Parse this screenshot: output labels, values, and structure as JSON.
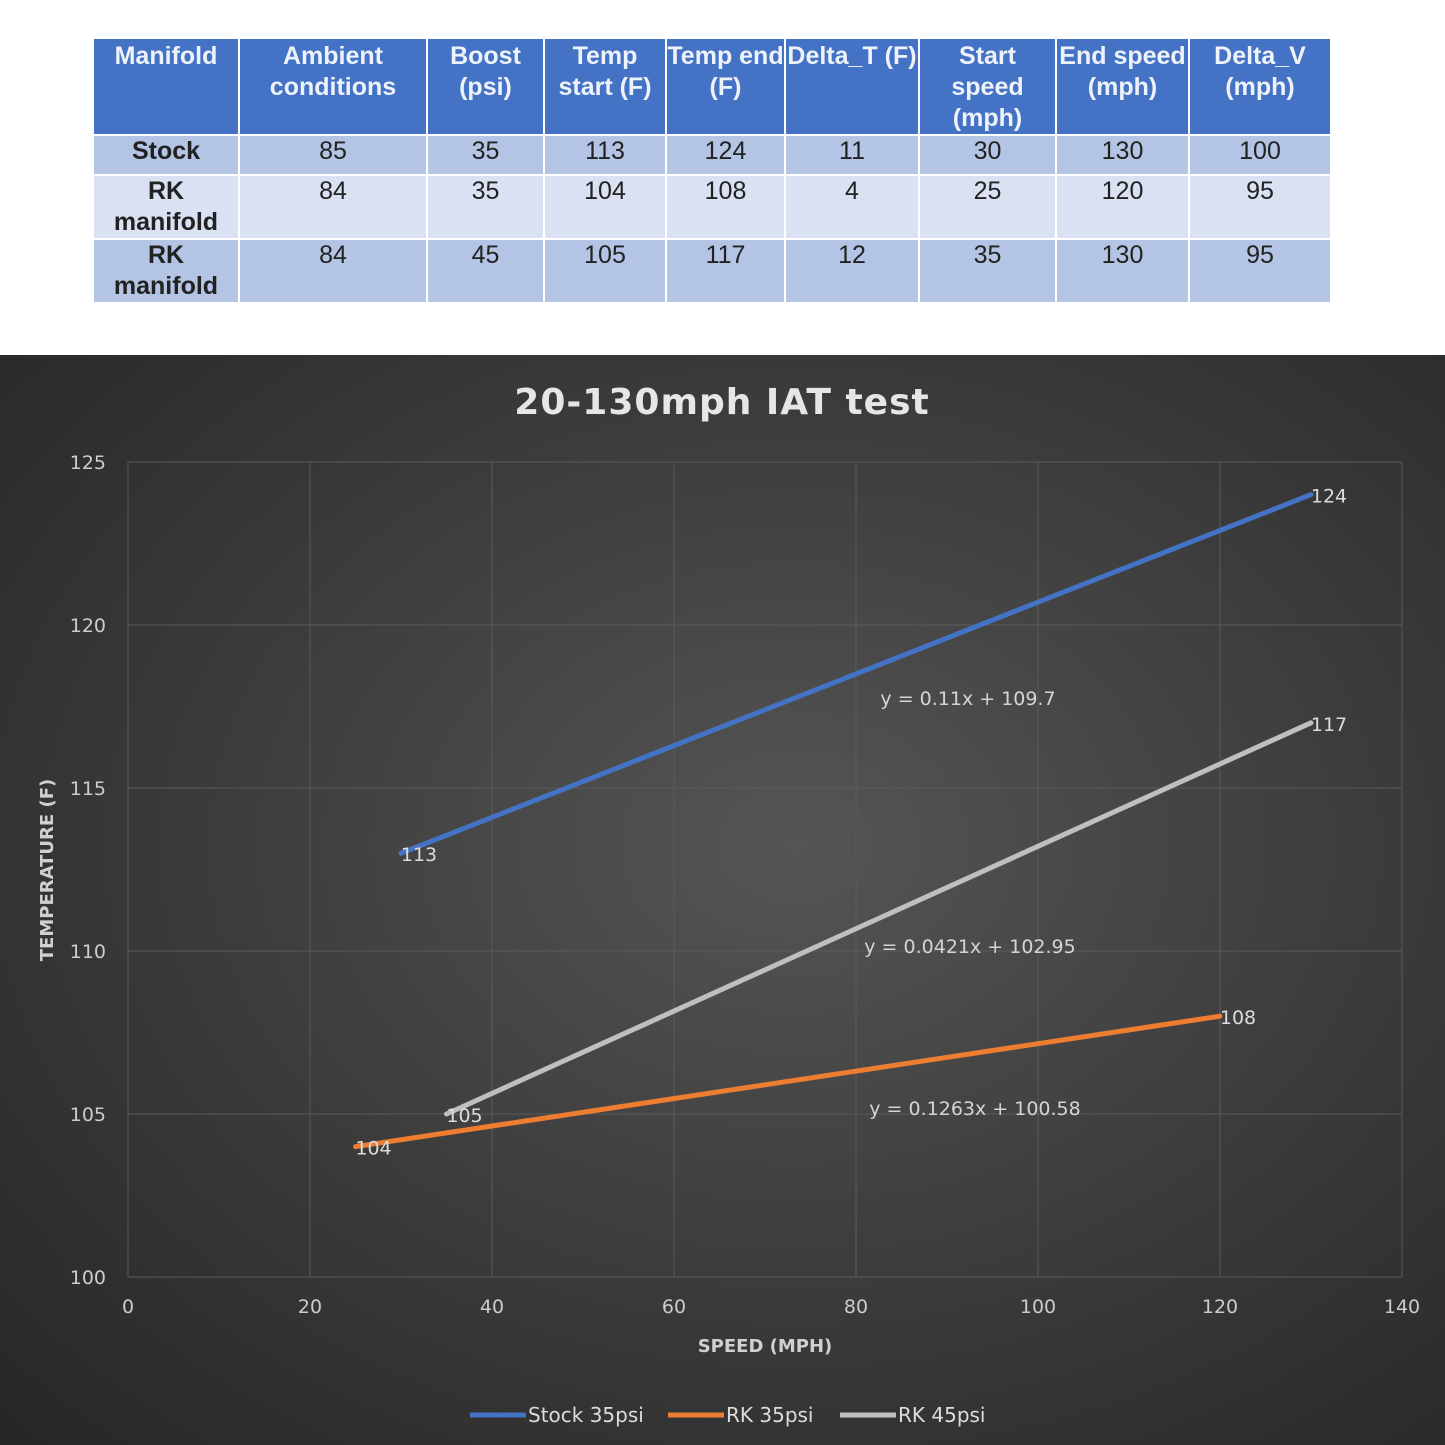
{
  "table": {
    "headers": [
      "Manifold",
      "Ambient conditions",
      "Boost (psi)",
      "Temp start (F)",
      "Temp end (F)",
      "Delta_T (F)",
      "Start speed (mph)",
      "End speed (mph)",
      "Delta_V (mph)"
    ],
    "rows": [
      [
        "Stock",
        "85",
        "35",
        "113",
        "124",
        "11",
        "30",
        "130",
        "100"
      ],
      [
        "RK manifold",
        "84",
        "35",
        "104",
        "108",
        "4",
        "25",
        "120",
        "95"
      ],
      [
        "RK manifold",
        "84",
        "45",
        "105",
        "117",
        "12",
        "35",
        "130",
        "95"
      ]
    ]
  },
  "chart_data": {
    "type": "line",
    "title": "20-130mph IAT test",
    "xlabel": "SPEED (MPH)",
    "ylabel": "TEMPERATURE (F)",
    "xlim": [
      0,
      140
    ],
    "ylim": [
      100,
      125
    ],
    "xticks": [
      "0",
      "20",
      "40",
      "60",
      "80",
      "100",
      "120",
      "140"
    ],
    "yticks": [
      "100",
      "105",
      "110",
      "115",
      "120",
      "125"
    ],
    "grid": true,
    "legend": "bottom",
    "series": [
      {
        "name": "Stock 35psi",
        "color": "#4472c4",
        "points": [
          [
            30,
            113
          ],
          [
            130,
            124
          ]
        ],
        "labels": [
          "113",
          "124"
        ],
        "trendline": "y = 0.11x + 109.7"
      },
      {
        "name": "RK 35psi",
        "color": "#ed7d31",
        "points": [
          [
            25,
            104
          ],
          [
            120,
            108
          ]
        ],
        "labels": [
          "104",
          "108"
        ],
        "trendline": "y = 0.0421x + 102.95"
      },
      {
        "name": "RK 45psi",
        "color": "#bfbfbf",
        "points": [
          [
            35,
            105
          ],
          [
            130,
            117
          ]
        ],
        "labels": [
          "105",
          "117"
        ],
        "trendline": "y = 0.1263x + 100.58"
      }
    ]
  }
}
